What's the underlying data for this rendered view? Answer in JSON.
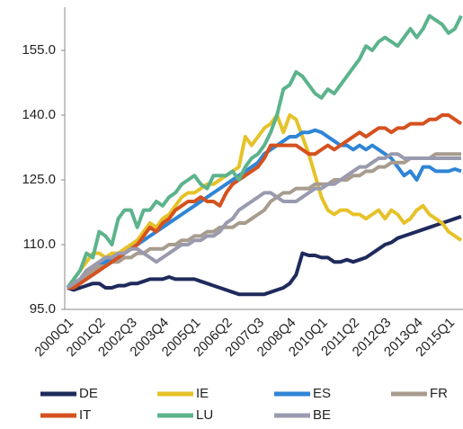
{
  "chart_data": {
    "type": "line",
    "categories": [
      "2000Q1",
      null,
      null,
      null,
      null,
      "2001Q2",
      null,
      null,
      null,
      null,
      "2002Q3",
      null,
      null,
      null,
      null,
      "2003Q4",
      null,
      null,
      null,
      null,
      "2005Q1",
      null,
      null,
      null,
      null,
      "2006Q2",
      null,
      null,
      null,
      null,
      "2007Q3",
      null,
      null,
      null,
      null,
      "2008Q4",
      null,
      null,
      null,
      null,
      "2010Q1",
      null,
      null,
      null,
      null,
      "2011Q2",
      null,
      null,
      null,
      null,
      "2012Q3",
      null,
      null,
      null,
      null,
      "2013Q4",
      null,
      null,
      null,
      null,
      "2015Q1",
      null,
      null
    ],
    "series": [
      {
        "name": "DE",
        "color": "#1f2a5c",
        "values": [
          100,
          99.5,
          100,
          100.5,
          101,
          101,
          100,
          100,
          100.5,
          100.5,
          101,
          101,
          101.5,
          102,
          102,
          102,
          102.5,
          102,
          102,
          102,
          102,
          101.5,
          101,
          100.5,
          100,
          99.5,
          99,
          98.5,
          98.5,
          98.5,
          98.5,
          98.5,
          99,
          99.5,
          100,
          101,
          103,
          108,
          107.5,
          107.5,
          107,
          107,
          106,
          106,
          106.5,
          106,
          106.5,
          107,
          108,
          109,
          110,
          110.5,
          111.5,
          112,
          112.5,
          113,
          113.5,
          114,
          114.5,
          115,
          115.5,
          116,
          116.5
        ]
      },
      {
        "name": "IE",
        "color": "#e6c229",
        "values": [
          100,
          102,
          104,
          106,
          108,
          108,
          107,
          108,
          108,
          109,
          110,
          111,
          113,
          115,
          114,
          116,
          117,
          119,
          121,
          122,
          122,
          123,
          124,
          124,
          125,
          126,
          127,
          128,
          135,
          133,
          135,
          137,
          138,
          140,
          136,
          140,
          139,
          135,
          131,
          126,
          121,
          118,
          117,
          118,
          118,
          117,
          117,
          116,
          117,
          118,
          116,
          118,
          117,
          115,
          116,
          118,
          119,
          117,
          116,
          115,
          113,
          112,
          111
        ]
      },
      {
        "name": "ES",
        "color": "#2f85d6",
        "values": [
          100,
          101,
          102,
          103,
          104,
          105,
          106,
          107,
          107,
          108,
          109,
          110,
          111,
          112,
          113,
          114,
          115,
          116,
          117,
          118,
          119,
          120,
          121,
          122,
          123,
          124,
          125,
          126,
          127,
          128,
          129,
          131,
          132,
          133,
          134,
          135,
          135,
          136,
          136,
          136.5,
          136,
          135,
          134,
          133,
          133,
          132,
          133,
          132,
          133,
          132,
          131,
          130,
          128,
          126,
          127,
          125,
          128,
          128,
          127,
          127,
          127,
          127.5,
          127
        ]
      },
      {
        "name": "FR",
        "color": "#a89c8e",
        "values": [
          100,
          101,
          102,
          103,
          104,
          105,
          105,
          106,
          106,
          107,
          107,
          108,
          108,
          109,
          109,
          109,
          110,
          110,
          111,
          111,
          112,
          112,
          113,
          113,
          114,
          114,
          114,
          115,
          115,
          116,
          117,
          118,
          120,
          121,
          122,
          122,
          123,
          123,
          123,
          124,
          124,
          124,
          125,
          125,
          125,
          126,
          126,
          127,
          127,
          128,
          128,
          129,
          129,
          129,
          130,
          130,
          130,
          130,
          131,
          131,
          131,
          131,
          131
        ]
      },
      {
        "name": "IT",
        "color": "#d5511e",
        "values": [
          100,
          100,
          101,
          102,
          103,
          104,
          105,
          106,
          107,
          108,
          109,
          110,
          112,
          114,
          113,
          115,
          116,
          118,
          119,
          120,
          120,
          121,
          120,
          120,
          119,
          122,
          124,
          125,
          126,
          127,
          128,
          130,
          133,
          133,
          133,
          133,
          133,
          132,
          131,
          131,
          132,
          133,
          132,
          133,
          134,
          135,
          136,
          135,
          136,
          137,
          137,
          136,
          137,
          137,
          138,
          138,
          138,
          139,
          139,
          140,
          140,
          139,
          138
        ]
      },
      {
        "name": "LU",
        "color": "#5cb38c",
        "values": [
          100,
          102,
          104,
          108,
          107,
          113,
          112,
          110,
          116,
          118,
          118,
          114,
          118,
          118,
          120,
          119,
          121,
          122,
          124,
          125,
          126,
          124,
          123,
          126,
          126,
          126,
          127,
          125,
          128,
          130,
          131,
          133,
          136,
          140,
          146,
          147,
          150,
          149,
          147,
          145,
          144,
          146,
          145,
          147,
          149,
          151,
          153,
          156,
          155,
          157,
          158,
          157,
          156,
          158,
          160,
          158,
          160,
          163,
          162,
          161,
          159,
          160,
          163
        ]
      },
      {
        "name": "BE",
        "color": "#9a9aaf",
        "values": [
          100,
          101,
          102,
          104,
          105,
          106,
          107,
          107,
          108,
          108,
          109,
          109,
          108,
          107,
          106,
          107,
          108,
          109,
          110,
          110,
          111,
          111,
          112,
          112,
          113,
          115,
          116,
          118,
          119,
          120,
          121,
          122,
          122,
          121,
          120,
          120,
          120,
          121,
          122,
          123,
          123,
          124,
          124,
          125,
          126,
          127,
          128,
          128,
          129,
          130,
          130,
          131,
          131,
          130,
          130,
          130,
          130,
          130,
          130,
          130,
          130,
          130,
          130
        ]
      }
    ],
    "ylim": [
      95,
      165
    ],
    "yticks": [
      {
        "value": 95,
        "label": "95.0"
      },
      {
        "value": 110,
        "label": "110.0"
      },
      {
        "value": 125,
        "label": "125.0"
      },
      {
        "value": 140,
        "label": "140.0"
      },
      {
        "value": 155,
        "label": "155.0"
      }
    ],
    "grid": false
  }
}
